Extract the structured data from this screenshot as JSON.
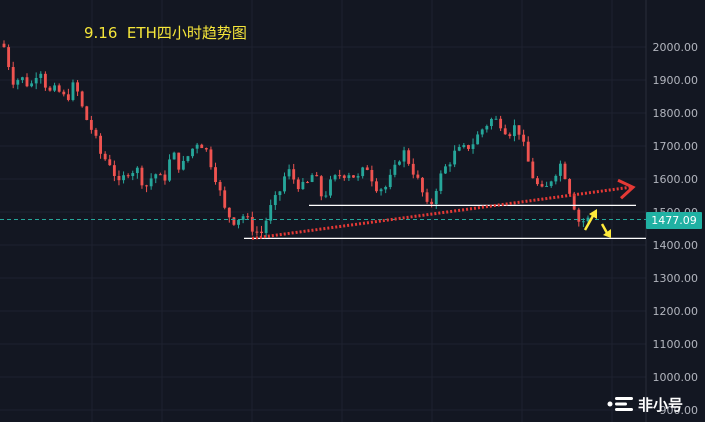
{
  "title": "9.16  ETH四小时趋势图",
  "last_price_label": "1477.09",
  "watermark": "非小号",
  "colors": {
    "background": "#131722",
    "up": "#26a69a",
    "down": "#ef5350",
    "grid": "#1e2230",
    "axis_text": "#b2b5be",
    "trend": "#e53935",
    "arrow": "#ffeb3b",
    "line": "#ffffff",
    "price_tag": "#20b1a3"
  },
  "chart_data": {
    "type": "candlestick",
    "ylim": [
      950,
      2100
    ],
    "y_ticks": [
      "2000.00",
      "1900.00",
      "1800.00",
      "1700.00",
      "1600.00",
      "1500.00",
      "1400.00",
      "1300.00",
      "1200.00",
      "1100.00",
      "1000.00",
      "900.00"
    ],
    "last_price": 1477.09,
    "support_level": 1420,
    "resistance_level": 1520,
    "uptrend_line": {
      "from": 1420,
      "to": 1575
    },
    "close_path": [
      2000,
      1900,
      1905,
      1880,
      1945,
      1860,
      1870,
      1840,
      1890,
      1800,
      1745,
      1670,
      1650,
      1580,
      1625,
      1630,
      1575,
      1620,
      1590,
      1680,
      1630,
      1680,
      1720,
      1680,
      1600,
      1500,
      1475,
      1490,
      1455,
      1430,
      1505,
      1550,
      1630,
      1590,
      1570,
      1620,
      1540,
      1590,
      1615,
      1620,
      1600,
      1640,
      1580,
      1570,
      1615,
      1690,
      1640,
      1580,
      1500,
      1590,
      1640,
      1680,
      1690,
      1710,
      1750,
      1780,
      1775,
      1740,
      1765,
      1670,
      1590,
      1555,
      1610,
      1650,
      1560,
      1470,
      1477
    ]
  }
}
